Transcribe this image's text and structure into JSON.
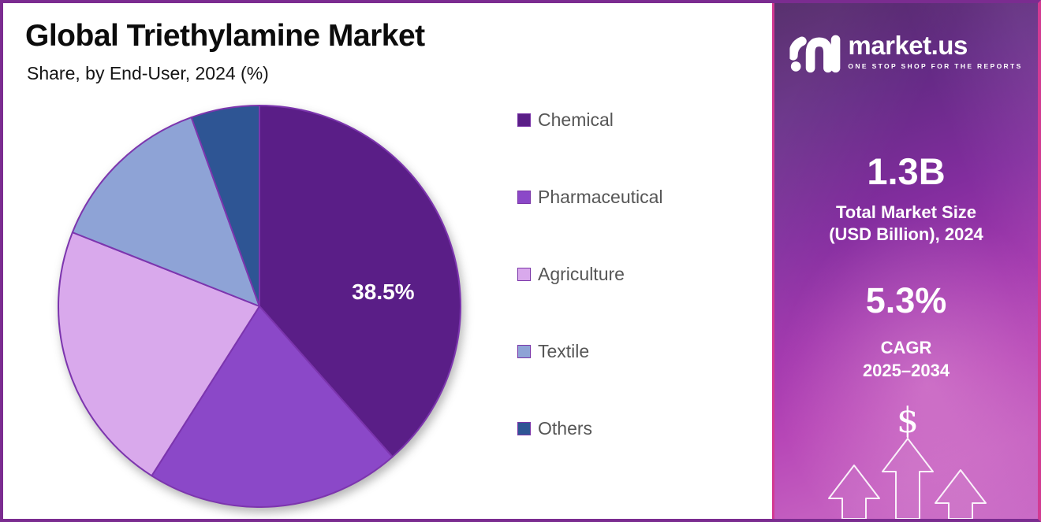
{
  "header": {
    "title": "Global Triethylamine Market",
    "subtitle": "Share, by End-User, 2024 (%)"
  },
  "chart_data": {
    "type": "pie",
    "title": "Global Triethylamine Market",
    "subtitle": "Share, by End-User, 2024 (%)",
    "unit": "percent of market share",
    "categories": [
      "Chemical",
      "Pharmaceutical",
      "Agriculture",
      "Textile",
      "Others"
    ],
    "values": [
      38.5,
      20.5,
      22.0,
      13.5,
      5.5
    ],
    "colors": [
      "#5a1e87",
      "#8b48c8",
      "#d9a9ec",
      "#8ea3d6",
      "#2e5594"
    ],
    "slice_border_color": "#7c35ae",
    "data_label": {
      "slice": "Chemical",
      "text": "38.5%",
      "color": "#ffffff"
    },
    "start_angle_deg": 0,
    "direction": "clockwise",
    "legend_position": "right",
    "legend_text_color": "#565656"
  },
  "sidebar": {
    "logo": {
      "brand": "market.us",
      "tagline": "ONE STOP SHOP FOR THE REPORTS"
    },
    "market_size": {
      "value": "1.3B",
      "label_line1": "Total Market Size",
      "label_line2": "(USD Billion), 2024"
    },
    "cagr": {
      "value": "5.3%",
      "label_line1": "CAGR",
      "label_line2": "2025–2034"
    },
    "dollar_symbol": "$",
    "accent_border_color": "#d23a92",
    "background_colors": [
      "#4c2163",
      "#a338ae",
      "#ca6cc6"
    ]
  }
}
